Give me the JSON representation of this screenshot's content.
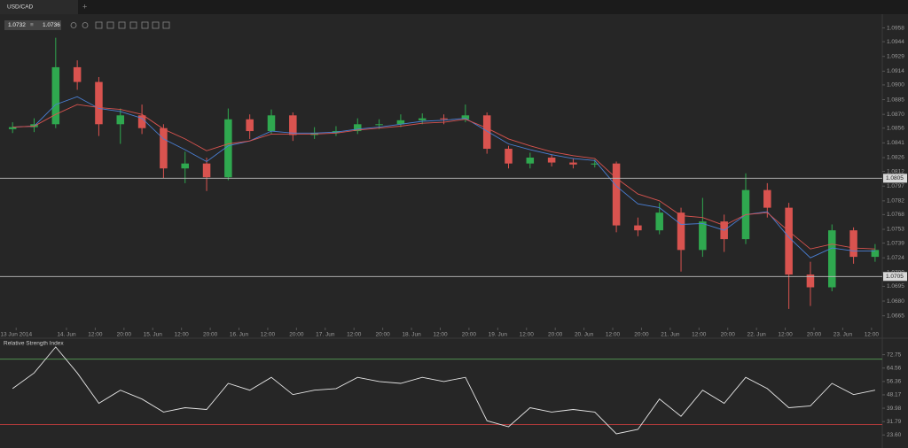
{
  "tab": {
    "label": "USD/CAD"
  },
  "quote": {
    "bid": "1.0732",
    "ask": "1.0736"
  },
  "chart_data": [
    {
      "type": "candlestick",
      "x": [
        -15,
        -9,
        -3,
        3,
        9,
        15,
        21,
        27,
        33,
        39,
        45,
        51,
        57,
        63,
        69,
        75,
        81,
        87,
        93,
        99,
        105,
        111,
        117,
        123,
        129,
        135,
        141,
        147,
        153,
        159,
        165,
        171,
        177,
        183,
        189,
        195,
        201,
        207,
        213,
        219,
        225
      ],
      "open": [
        1.0855,
        1.0857,
        1.086,
        1.0918,
        1.0903,
        1.086,
        1.0869,
        1.0856,
        1.0815,
        1.082,
        1.0806,
        1.0865,
        1.0853,
        1.0869,
        1.0849,
        1.0851,
        1.0853,
        1.086,
        1.086,
        1.0864,
        1.0866,
        1.0865,
        1.0869,
        1.0835,
        1.082,
        1.0826,
        1.0821,
        1.0819,
        1.082,
        1.0757,
        1.0752,
        1.077,
        1.0732,
        1.0761,
        1.0743,
        1.0793,
        1.0775,
        1.0707,
        1.0694,
        1.0752,
        1.0725
      ],
      "high": [
        1.0862,
        1.0866,
        1.0948,
        1.0925,
        1.0908,
        1.0876,
        1.088,
        1.086,
        1.0832,
        1.0826,
        1.0876,
        1.087,
        1.0875,
        1.0872,
        1.0857,
        1.0858,
        1.0866,
        1.0865,
        1.087,
        1.0871,
        1.087,
        1.088,
        1.0872,
        1.0838,
        1.0831,
        1.0829,
        1.0825,
        1.0824,
        1.0822,
        1.0765,
        1.078,
        1.0775,
        1.0785,
        1.0768,
        1.081,
        1.08,
        1.078,
        1.072,
        1.0758,
        1.0755,
        1.0738
      ],
      "low": [
        1.0851,
        1.0852,
        1.0856,
        1.0895,
        1.0848,
        1.084,
        1.085,
        1.0805,
        1.08,
        1.0792,
        1.0803,
        1.0845,
        1.085,
        1.0843,
        1.0845,
        1.0848,
        1.085,
        1.0855,
        1.0857,
        1.086,
        1.086,
        1.0862,
        1.083,
        1.0815,
        1.0815,
        1.0817,
        1.0815,
        1.0816,
        1.075,
        1.0746,
        1.0748,
        1.071,
        1.0725,
        1.073,
        1.0738,
        1.0765,
        1.0672,
        1.0675,
        1.069,
        1.0718,
        1.072
      ],
      "close": [
        1.0857,
        1.086,
        1.0918,
        1.0903,
        1.086,
        1.0869,
        1.0856,
        1.0815,
        1.082,
        1.0806,
        1.0865,
        1.0853,
        1.0869,
        1.0849,
        1.0851,
        1.0853,
        1.086,
        1.086,
        1.0864,
        1.0866,
        1.0865,
        1.0869,
        1.0835,
        1.082,
        1.0826,
        1.0821,
        1.0819,
        1.082,
        1.0757,
        1.0752,
        1.077,
        1.0732,
        1.0761,
        1.0743,
        1.0793,
        1.0775,
        1.0707,
        1.0694,
        1.0752,
        1.0725,
        1.0732
      ],
      "up_color": "#2fa84f",
      "down_color": "#d9534f",
      "moving_averages": [
        {
          "color": "#4a7fd4",
          "values": [
            1.0857,
            1.0858,
            1.088,
            1.0888,
            1.0876,
            1.0873,
            1.0866,
            1.0845,
            1.0834,
            1.0822,
            1.0838,
            1.0843,
            1.0853,
            1.0851,
            1.0851,
            1.0852,
            1.0855,
            1.0857,
            1.086,
            1.0863,
            1.0864,
            1.0866,
            1.0853,
            1.084,
            1.0834,
            1.0829,
            1.0825,
            1.0823,
            1.0797,
            1.0779,
            1.0775,
            1.0758,
            1.0759,
            1.0752,
            1.0768,
            1.0771,
            1.0745,
            1.0724,
            1.0734,
            1.0731,
            1.0731
          ]
        },
        {
          "color": "#d9534f",
          "values": [
            1.0857,
            1.0858,
            1.087,
            1.088,
            1.0877,
            1.0875,
            1.087,
            1.0855,
            1.0845,
            1.0833,
            1.084,
            1.0843,
            1.085,
            1.085,
            1.085,
            1.0851,
            1.0854,
            1.0856,
            1.0858,
            1.0861,
            1.0862,
            1.0865,
            1.0856,
            1.0845,
            1.0838,
            1.0832,
            1.0828,
            1.0825,
            1.0805,
            1.0789,
            1.0782,
            1.0767,
            1.0765,
            1.0757,
            1.0768,
            1.077,
            1.0751,
            1.0733,
            1.0738,
            1.0734,
            1.0733
          ]
        }
      ],
      "hlines": [
        1.0805,
        1.0705
      ],
      "xlim": [
        -18.5,
        227
      ],
      "ylim": [
        1.0653,
        1.0972
      ],
      "yticks": [
        1.0958,
        1.0944,
        1.0929,
        1.0914,
        {
          "value": 1.09,
          "label": "1.0900"
        },
        1.0885,
        {
          "value": 1.087,
          "label": "1.0870"
        },
        1.0856,
        1.0841,
        1.0826,
        1.0812,
        1.0797,
        1.0782,
        1.0768,
        1.0753,
        1.0739,
        1.0724,
        1.0709,
        1.0695,
        {
          "value": 1.068,
          "label": "1.0680"
        },
        1.0665
      ],
      "xticks": [
        {
          "value": -14,
          "label": "13 Jun 2014"
        },
        {
          "value": 0,
          "label": "14. Jun"
        },
        {
          "value": 8,
          "label": "12:00"
        },
        {
          "value": 16,
          "label": "20:00"
        },
        {
          "value": 24,
          "label": "15. Jun"
        },
        {
          "value": 32,
          "label": "12:00"
        },
        {
          "value": 40,
          "label": "20:00"
        },
        {
          "value": 48,
          "label": "16. Jun"
        },
        {
          "value": 56,
          "label": "12:00"
        },
        {
          "value": 64,
          "label": "20:00"
        },
        {
          "value": 72,
          "label": "17. Jun"
        },
        {
          "value": 80,
          "label": "12:00"
        },
        {
          "value": 88,
          "label": "20:00"
        },
        {
          "value": 96,
          "label": "18. Jun"
        },
        {
          "value": 104,
          "label": "12:00"
        },
        {
          "value": 112,
          "label": "20:00"
        },
        {
          "value": 120,
          "label": "19. Jun"
        },
        {
          "value": 128,
          "label": "12:00"
        },
        {
          "value": 136,
          "label": "20:00"
        },
        {
          "value": 144,
          "label": "20. Jun"
        },
        {
          "value": 152,
          "label": "12:00"
        },
        {
          "value": 160,
          "label": "20:00"
        },
        {
          "value": 168,
          "label": "21. Jun"
        },
        {
          "value": 176,
          "label": "12:00"
        },
        {
          "value": 184,
          "label": "20:00"
        },
        {
          "value": 192,
          "label": "22. Jun"
        },
        {
          "value": 200,
          "label": "12:00"
        },
        {
          "value": 208,
          "label": "20:00"
        },
        {
          "value": 216,
          "label": "23. Jun"
        },
        {
          "value": 224,
          "label": "12:00"
        }
      ]
    },
    {
      "type": "line",
      "title": "Relative Strength Index",
      "x": [
        -15,
        -9,
        -3,
        3,
        9,
        15,
        21,
        27,
        33,
        39,
        45,
        51,
        57,
        63,
        69,
        75,
        81,
        87,
        93,
        99,
        105,
        111,
        117,
        123,
        129,
        135,
        141,
        147,
        153,
        159,
        165,
        171,
        177,
        183,
        189,
        195,
        201,
        207,
        213,
        219,
        225
      ],
      "values": [
        52,
        61.6,
        77.5,
        61.6,
        43,
        51,
        45.6,
        37.6,
        40.3,
        39.2,
        55.2,
        51,
        58.9,
        48.3,
        51,
        52,
        58.9,
        56.3,
        55.2,
        58.9,
        56.3,
        58.9,
        32.3,
        28.6,
        40.3,
        37.6,
        39.2,
        37.6,
        24.3,
        27,
        45.6,
        35,
        51,
        43,
        58.9,
        52,
        40.3,
        41.4,
        55.2,
        48.3,
        51
      ],
      "color": "#e6e6e6",
      "levels": [
        {
          "value": 70,
          "color": "#4f8f4f"
        },
        {
          "value": 30,
          "color": "#b03a3a"
        }
      ],
      "xlim": [
        -18.5,
        227
      ],
      "ylim": [
        15.6,
        82.3
      ],
      "yticks": [
        72.75,
        64.56,
        56.36,
        48.17,
        39.98,
        31.79,
        {
          "value": 23.6,
          "label": "23.60"
        }
      ]
    }
  ]
}
